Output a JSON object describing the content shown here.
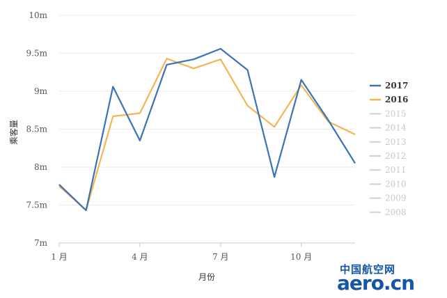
{
  "chart_data": {
    "type": "line",
    "ylabel": "乘客量",
    "xlabel": "月份",
    "x": [
      1,
      2,
      3,
      4,
      5,
      6,
      7,
      8,
      9,
      10,
      11,
      12
    ],
    "x_tick_labels": [
      {
        "x": 1,
        "label": "1 月"
      },
      {
        "x": 4,
        "label": "4 月"
      },
      {
        "x": 7,
        "label": "7 月"
      },
      {
        "x": 10,
        "label": "10 月"
      }
    ],
    "ylim": [
      7,
      10
    ],
    "y_ticks": [
      {
        "value": 7,
        "label": "7m"
      },
      {
        "value": 7.5,
        "label": "7.5m"
      },
      {
        "value": 8,
        "label": "8m"
      },
      {
        "value": 8.5,
        "label": "8.5m"
      },
      {
        "value": 9,
        "label": "9m"
      },
      {
        "value": 9.5,
        "label": "9.5m"
      },
      {
        "value": 10,
        "label": "10m"
      }
    ],
    "grid": true,
    "legend_position": "right",
    "series": [
      {
        "name": "2017",
        "color": "#3a73b5",
        "active": true,
        "values": [
          7.77,
          7.43,
          9.06,
          8.35,
          9.35,
          9.42,
          9.56,
          9.28,
          7.87,
          9.15,
          8.62,
          8.05
        ]
      },
      {
        "name": "2016",
        "color": "#f5b455",
        "active": true,
        "values": [
          7.75,
          7.43,
          8.67,
          8.71,
          9.43,
          9.3,
          9.42,
          8.81,
          8.53,
          9.08,
          8.6,
          8.43
        ]
      }
    ],
    "inactive_legend": [
      "2015",
      "2014",
      "2013",
      "2012",
      "2011",
      "2010",
      "2009",
      "2008"
    ],
    "inactive_color": "#d0d0d0"
  },
  "watermark": {
    "line1": "中国航空网",
    "line2": "aero.cn"
  }
}
